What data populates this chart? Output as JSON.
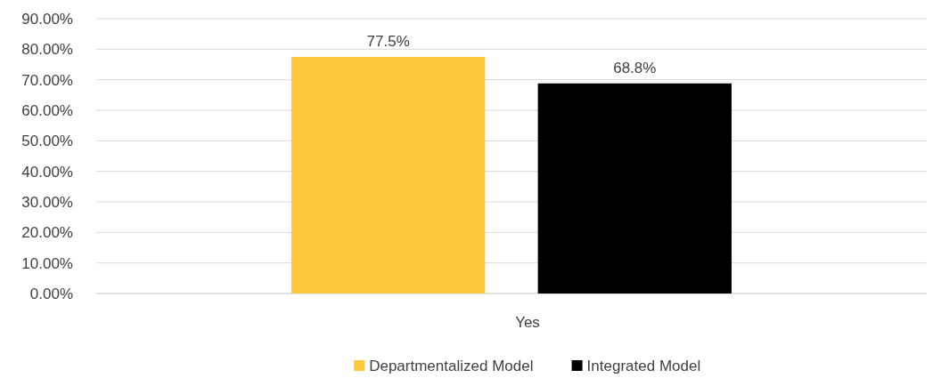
{
  "chart_data": {
    "type": "bar",
    "categories": [
      "Yes"
    ],
    "series": [
      {
        "name": "Departmentalized Model",
        "color": "#ffc83d",
        "values": [
          77.5
        ],
        "value_labels": [
          "77.5%"
        ]
      },
      {
        "name": "Integrated Model",
        "color": "#000000",
        "values": [
          68.8
        ],
        "value_labels": [
          "68.8%"
        ]
      }
    ],
    "ylim": [
      0,
      90
    ],
    "yticks": [
      {
        "value": 0,
        "label": "0.00%"
      },
      {
        "value": 10,
        "label": "10.00%"
      },
      {
        "value": 20,
        "label": "20.00%"
      },
      {
        "value": 30,
        "label": "30.00%"
      },
      {
        "value": 40,
        "label": "40.00%"
      },
      {
        "value": 50,
        "label": "50.00%"
      },
      {
        "value": 60,
        "label": "60.00%"
      },
      {
        "value": 70,
        "label": "70.00%"
      },
      {
        "value": 80,
        "label": "80.00%"
      },
      {
        "value": 90,
        "label": "90.00%"
      }
    ],
    "grid": true,
    "legend": "bottom"
  }
}
